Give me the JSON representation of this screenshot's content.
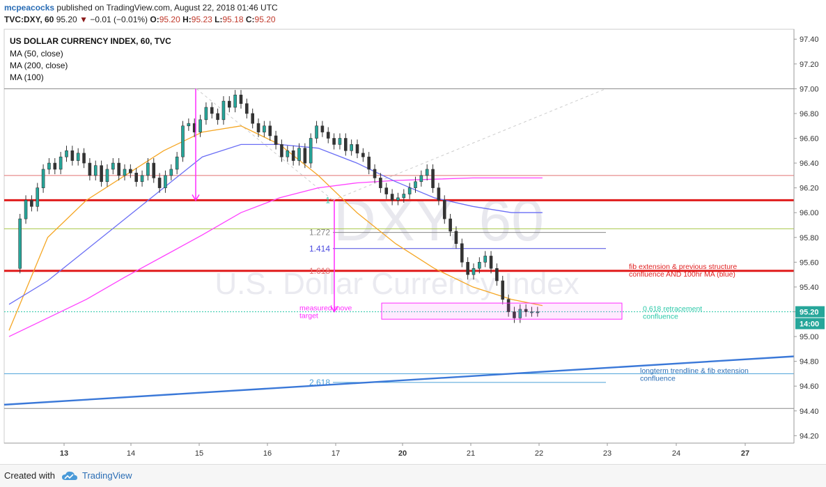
{
  "header": {
    "user": "mcpeacocks",
    "published": "published on TradingView.com, August 22, 2018 01:46 UTC",
    "symbol": "TVC:DXY, 60",
    "last": "95.20",
    "change": "−0.01 (−0.01%)",
    "open_label": "O:",
    "open": "95.20",
    "high_label": "H:",
    "high": "95.23",
    "low_label": "L:",
    "low": "95.18",
    "close_label": "C:",
    "close": "95.20"
  },
  "legend": {
    "title": "US DOLLAR CURRENCY INDEX, 60, TVC",
    "ma50": "MA (50, close)",
    "ma200": "MA (200, close)",
    "ma100": "MA (100)"
  },
  "watermark": {
    "symbol": "DXY, 60",
    "name": "U.S. Dollar Currency Index"
  },
  "footer": {
    "created": "Created with",
    "brand": "TradingView"
  },
  "colors": {
    "candle": "#26a69a",
    "candle_down": "#ef5350",
    "ma50": "#f5a623",
    "ma200": "#ff40ff",
    "ma100": "#6a6ef5",
    "resistance": "#e01b1b",
    "trendline": "#3a78d8",
    "fib_272": "#888888",
    "fib_414": "#4a4ae0",
    "fib_618": "#e07070",
    "fib_2618": "#4aa0d8",
    "measured": "#ff2aff",
    "retracement": "#2ac8a8",
    "note_red": "#e02020",
    "note_blue": "#2a6db5"
  },
  "chart_data": {
    "type": "line",
    "price_axis": {
      "ylim": [
        94.14,
        97.48
      ],
      "ticks": [
        "97.40",
        "97.20",
        "97.00",
        "96.80",
        "96.60",
        "96.40",
        "96.20",
        "96.00",
        "95.80",
        "95.60",
        "95.40",
        "95.20",
        "95.00",
        "94.80",
        "94.60",
        "94.40",
        "94.20"
      ]
    },
    "time_axis": {
      "ticks": [
        "13",
        "14",
        "15",
        "16",
        "17",
        "20",
        "21",
        "22",
        "23",
        "24",
        "27"
      ],
      "bold_ticks": [
        "13",
        "20",
        "27"
      ]
    },
    "price_badge": "95.20",
    "time_badge": "14:00",
    "series": [
      {
        "name": "Close",
        "x": [
          0.05,
          0.1,
          0.15,
          0.2,
          0.25,
          0.3,
          0.35,
          0.4,
          0.45,
          0.5,
          0.55,
          0.6,
          0.65,
          0.7,
          0.75,
          0.8,
          0.85,
          0.9,
          0.95,
          1.0,
          1.05,
          1.1,
          1.15,
          1.2,
          1.25,
          1.3,
          1.35,
          1.4,
          1.45,
          1.5,
          1.55,
          1.6,
          1.65,
          1.7,
          1.75,
          1.8,
          1.85,
          1.9,
          1.95,
          2.0,
          2.05,
          2.1,
          2.15,
          2.2,
          2.25,
          2.3,
          2.35,
          2.4,
          2.45,
          2.5,
          2.55,
          2.6,
          2.65,
          2.7,
          2.75,
          2.8,
          2.85,
          2.9,
          2.95,
          3.0,
          3.05,
          3.1,
          3.15,
          3.2,
          3.25,
          3.3,
          3.35,
          3.4,
          3.45,
          3.5,
          3.55,
          3.6,
          3.65,
          3.7,
          3.75,
          3.8,
          3.85,
          3.9,
          3.95,
          4.0,
          4.05,
          4.1,
          4.15,
          4.2,
          4.25,
          4.3,
          4.35,
          4.4,
          4.45,
          4.5,
          4.55,
          4.6,
          4.65,
          4.7,
          4.75,
          4.8,
          4.85,
          4.9,
          4.95,
          5.0,
          5.05,
          5.1,
          5.15,
          5.2,
          5.25,
          5.3,
          5.35,
          5.4,
          5.45,
          5.5,
          5.55,
          5.6,
          5.65,
          5.7,
          5.75,
          5.8,
          5.85,
          5.9,
          5.95,
          6.0,
          6.05,
          6.1,
          6.15,
          6.2,
          6.25,
          6.3,
          6.35,
          6.4,
          6.45,
          6.5,
          6.55,
          6.6,
          6.65,
          6.7,
          6.75,
          6.8,
          6.85,
          6.9
        ],
        "values": [
          95.55,
          95.95,
          96.1,
          96.05,
          96.2,
          96.35,
          96.4,
          96.35,
          96.45,
          96.5,
          96.42,
          96.48,
          96.4,
          96.3,
          96.38,
          96.25,
          96.35,
          96.4,
          96.3,
          96.35,
          96.32,
          96.25,
          96.3,
          96.4,
          96.28,
          96.2,
          96.3,
          96.35,
          96.45,
          96.7,
          96.72,
          96.65,
          96.75,
          96.85,
          96.8,
          96.75,
          96.9,
          96.85,
          96.95,
          96.88,
          96.8,
          96.72,
          96.65,
          96.7,
          96.62,
          96.55,
          96.45,
          96.5,
          96.42,
          96.52,
          96.4,
          96.6,
          96.7,
          96.65,
          96.6,
          96.55,
          96.6,
          96.5,
          96.55,
          96.48,
          96.45,
          96.35,
          96.28,
          96.2,
          96.15,
          96.1,
          96.12,
          96.15,
          96.2,
          96.25,
          96.3,
          96.35,
          96.2,
          96.1,
          95.95,
          95.85,
          95.75,
          95.6,
          95.5,
          95.55,
          95.6,
          95.65,
          95.55,
          95.45,
          95.3,
          95.2,
          95.15,
          95.22,
          95.2,
          95.2,
          95.2,
          95.2,
          95.2,
          95.2,
          95.2,
          95.2,
          95.2,
          95.2,
          95.2,
          95.2,
          95.2,
          95.2,
          95.2,
          95.2,
          95.2,
          95.2,
          95.2,
          95.2,
          95.2,
          95.2,
          95.2,
          95.2,
          95.2,
          95.2,
          95.2,
          95.2,
          95.2,
          95.2,
          95.2,
          95.2,
          95.2,
          95.2,
          95.2,
          95.2,
          95.2,
          95.2,
          95.2,
          95.2,
          95.2,
          95.2,
          95.2,
          95.2,
          95.2,
          95.2,
          95.2,
          95.2,
          95.2,
          95.2
        ]
      },
      {
        "name": "MA (50, close)",
        "x": [
          0.0,
          0.5,
          1.0,
          1.5,
          2.0,
          2.5,
          3.0,
          3.5,
          4.0,
          4.5,
          5.0,
          5.5,
          6.0,
          6.5,
          6.9
        ],
        "values": [
          95.05,
          95.8,
          96.1,
          96.3,
          96.5,
          96.65,
          96.7,
          96.55,
          96.3,
          96.0,
          95.75,
          95.55,
          95.4,
          95.3,
          95.25
        ]
      },
      {
        "name": "MA (200, close)",
        "x": [
          0.0,
          0.5,
          1.0,
          1.5,
          2.0,
          2.5,
          3.0,
          3.5,
          4.0,
          4.5,
          5.0,
          5.5,
          6.0,
          6.5,
          6.9
        ],
        "values": [
          95.0,
          95.15,
          95.3,
          95.48,
          95.65,
          95.82,
          96.0,
          96.12,
          96.2,
          96.24,
          96.26,
          96.27,
          96.28,
          96.28,
          96.28
        ]
      },
      {
        "name": "MA (100)",
        "x": [
          0.0,
          0.5,
          1.0,
          1.5,
          2.0,
          2.5,
          3.0,
          3.5,
          4.0,
          4.5,
          5.0,
          5.5,
          6.0,
          6.5,
          6.9
        ],
        "values": [
          95.26,
          95.45,
          95.7,
          95.95,
          96.2,
          96.45,
          96.55,
          96.55,
          96.52,
          96.4,
          96.25,
          96.12,
          96.05,
          96.0,
          96.0
        ]
      }
    ],
    "horizontal_levels": [
      {
        "name": "97.00",
        "y": 97.0,
        "color": "#888888"
      },
      {
        "name": "96.30",
        "y": 96.3,
        "color": "#e07070"
      },
      {
        "name": "96.10",
        "y": 96.1,
        "color": "#e01b1b"
      },
      {
        "name": "95.87",
        "y": 95.87,
        "color": "#a8c848"
      },
      {
        "name": "95.53",
        "y": 95.53,
        "color": "#e01b1b"
      },
      {
        "name": "94.70",
        "y": 94.7,
        "color": "#4aa0d8"
      },
      {
        "name": "94.42",
        "y": 94.42,
        "color": "#888888"
      }
    ],
    "fib_levels": [
      {
        "label": "1",
        "y": 96.1
      },
      {
        "label": "1.272",
        "y": 95.84
      },
      {
        "label": "1.414",
        "y": 95.71
      },
      {
        "label": "1.618",
        "y": 95.53
      },
      {
        "label": "2.618",
        "y": 94.63
      }
    ],
    "annotations": {
      "measured_move": "measured move",
      "measured_move_2": "target",
      "fib_note_1": "fib extension & previous structure",
      "fib_note_2": "confluence AND 100hr MA (blue)",
      "retracement_1": "0.618 retracement",
      "retracement_2": "confluence",
      "trendline_1": "longterm trendline & fib extension",
      "trendline_2": "confluence"
    },
    "trendline": {
      "x": [
        -0.05,
        6.95
      ],
      "y": [
        94.45,
        94.84
      ]
    },
    "grid": false,
    "legend_position": "top-left"
  }
}
